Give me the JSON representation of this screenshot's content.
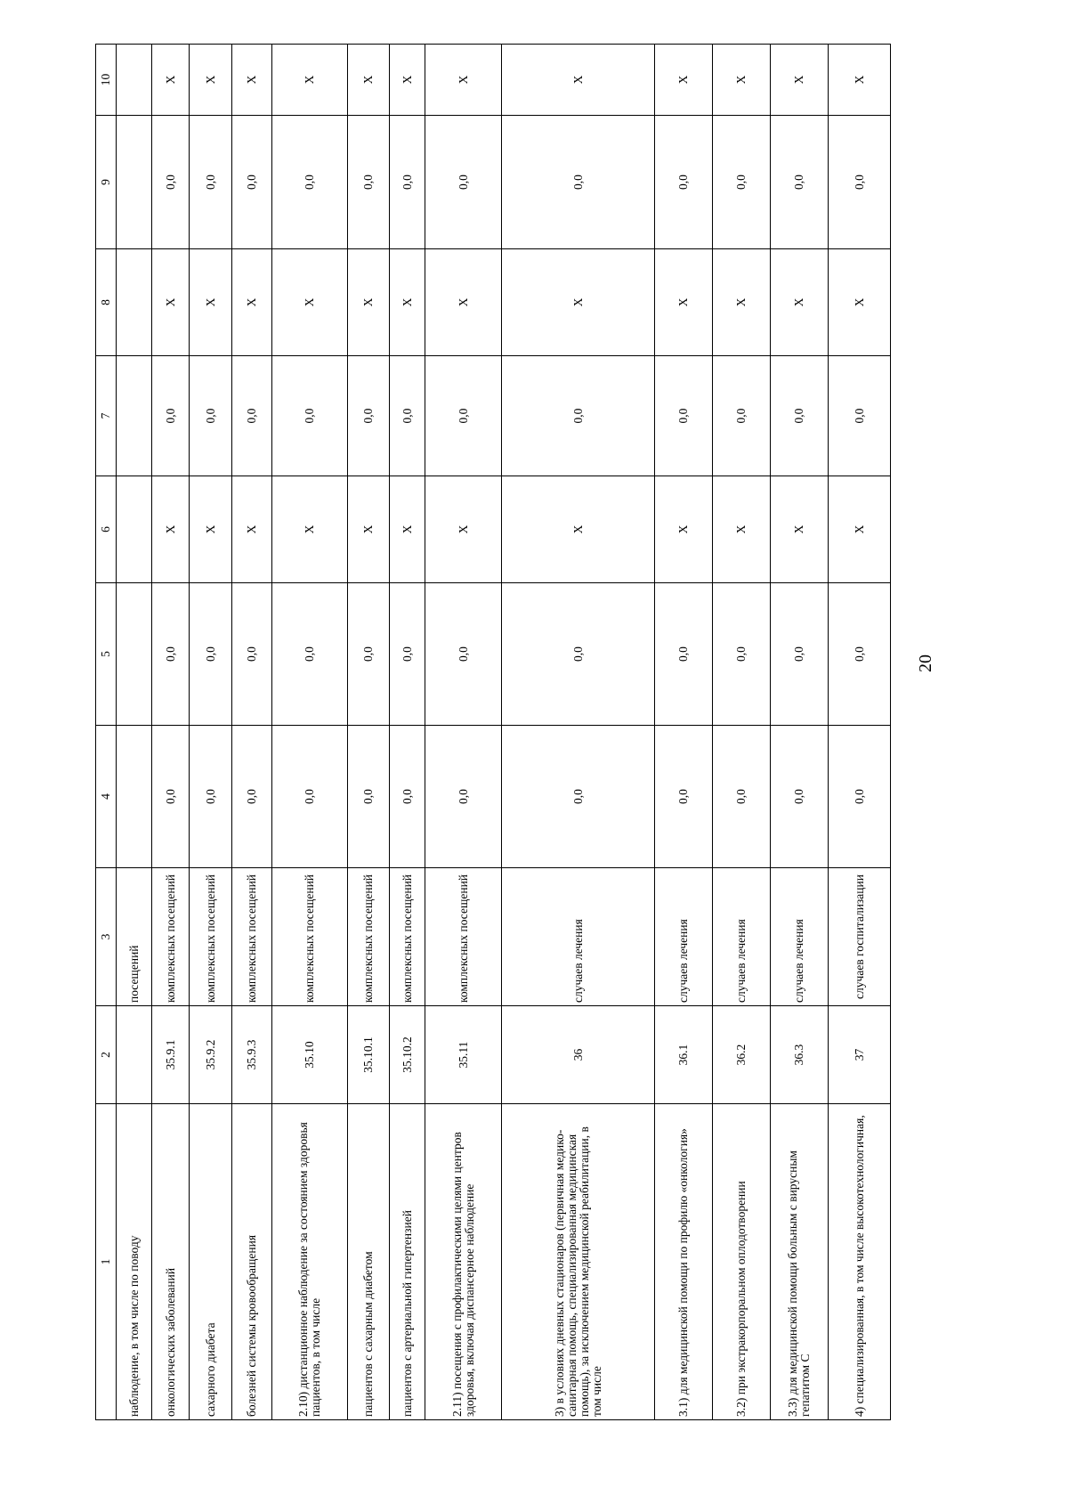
{
  "page_number": "20",
  "table": {
    "header": [
      "1",
      "2",
      "3",
      "4",
      "5",
      "6",
      "7",
      "8",
      "9",
      "10"
    ],
    "rows": [
      {
        "name": "наблюдение, в том числе по поводу",
        "code": "",
        "unit": "посещений",
        "v": [
          "",
          "",
          "",
          "",
          "",
          "",
          ""
        ]
      },
      {
        "name": "онкологических заболеваний",
        "code": "35.9.1",
        "unit": "комплексных посещений",
        "v": [
          "0,0",
          "0,0",
          "X",
          "0,0",
          "X",
          "0,0",
          "X"
        ]
      },
      {
        "name": "сахарного диабета",
        "code": "35.9.2",
        "unit": "комплексных посещений",
        "v": [
          "0,0",
          "0,0",
          "X",
          "0,0",
          "X",
          "0,0",
          "X"
        ]
      },
      {
        "name": "болезней системы кровообращения",
        "code": "35.9.3",
        "unit": "комплексных посещений",
        "v": [
          "0,0",
          "0,0",
          "X",
          "0,0",
          "X",
          "0,0",
          "X"
        ]
      },
      {
        "name": "2.10) дистанционное наблюдение за состоянием здоровья пациентов, в том числе",
        "code": "35.10",
        "unit": "комплексных посещений",
        "v": [
          "0,0",
          "0,0",
          "X",
          "0,0",
          "X",
          "0,0",
          "X"
        ]
      },
      {
        "name": "пациентов с сахарным диабетом",
        "code": "35.10.1",
        "unit": "комплексных посещений",
        "v": [
          "0,0",
          "0,0",
          "X",
          "0,0",
          "X",
          "0,0",
          "X"
        ]
      },
      {
        "name": "пациентов с артериальной гипертензией",
        "code": "35.10.2",
        "unit": "комплексных посещений",
        "v": [
          "0,0",
          "0,0",
          "X",
          "0,0",
          "X",
          "0,0",
          "X"
        ]
      },
      {
        "name": "2.11) посещения с профилактическими целями центров здоровья, включая диспансерное наблюдение",
        "code": "35.11",
        "unit": "комплексных посещений",
        "v": [
          "0,0",
          "0,0",
          "X",
          "0,0",
          "X",
          "0,0",
          "X"
        ]
      },
      {
        "name": "3) в условиях дневных стационаров (первичная медико-санитарная помощь, специализированная медицинская помощь), за исключением медицинской реабилитации, в том числе",
        "code": "36",
        "unit": "случаев лечения",
        "v": [
          "0,0",
          "0,0",
          "X",
          "0,0",
          "X",
          "0,0",
          "X"
        ]
      },
      {
        "name": "3.1) для медицинской помощи по профилю «онкология»",
        "code": "36.1",
        "unit": "случаев лечения",
        "v": [
          "0,0",
          "0,0",
          "X",
          "0,0",
          "X",
          "0,0",
          "X"
        ]
      },
      {
        "name": "3.2) при экстракорпоральном оплодотворении",
        "code": "36.2",
        "unit": "случаев лечения",
        "v": [
          "0,0",
          "0,0",
          "X",
          "0,0",
          "X",
          "0,0",
          "X"
        ]
      },
      {
        "name": "3.3) для медицинской помощи больным с вирусным гепатитом С",
        "code": "36.3",
        "unit": "случаев лечения",
        "v": [
          "0,0",
          "0,0",
          "X",
          "0,0",
          "X",
          "0,0",
          "X"
        ]
      },
      {
        "name": "4) специализированная, в том числе высокотехнологичная,",
        "code": "37",
        "unit": "случаев госпитализации",
        "v": [
          "0,0",
          "0,0",
          "X",
          "0,0",
          "X",
          "0,0",
          "X"
        ]
      }
    ]
  }
}
